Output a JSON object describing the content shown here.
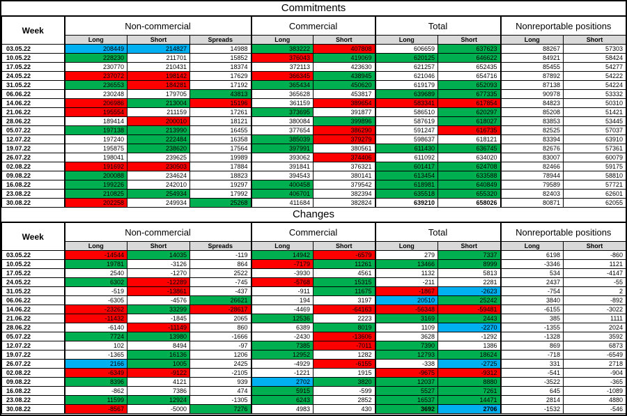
{
  "colors": {
    "g": "#00b050",
    "r": "#ff0000",
    "b": "#00b0f0",
    "header_fill": "#d9d9d9"
  },
  "chart_data": [
    {
      "type": "table",
      "title": "Commitments",
      "week_label": "Week",
      "groups": [
        {
          "label": "Non-commercial",
          "span": 3
        },
        {
          "label": "Commercial",
          "span": 2
        },
        {
          "label": "Total",
          "span": 2
        },
        {
          "label": "Nonreportable positions",
          "span": 2
        }
      ],
      "sub_headers": [
        "Long",
        "Short",
        "Spreads",
        "Long",
        "Short",
        "Long",
        "Short",
        "Long",
        "Short"
      ],
      "rows": [
        {
          "week": "03.05.22",
          "values": [
            208449,
            214827,
            14988,
            383222,
            407808,
            606659,
            637623,
            88267,
            57303
          ],
          "fills": "bb.gr.g.."
        },
        {
          "week": "10.05.22",
          "values": [
            228230,
            211701,
            15852,
            376043,
            419069,
            620125,
            646622,
            84921,
            58424
          ],
          "fills": "g..rggg.."
        },
        {
          "week": "17.05.22",
          "values": [
            230770,
            210431,
            18374,
            372113,
            423630,
            621257,
            652435,
            85455,
            54277
          ],
          "fills": "........."
        },
        {
          "week": "24.05.22",
          "values": [
            237072,
            198142,
            17629,
            366345,
            438945,
            621046,
            654716,
            87892,
            54222
          ],
          "fills": "rr.rg...."
        },
        {
          "week": "31.05.22",
          "values": [
            236553,
            184281,
            17192,
            365434,
            450620,
            619179,
            652093,
            87138,
            54224
          ],
          "fills": "gr.gg.g.."
        },
        {
          "week": "06.06.22",
          "values": [
            230248,
            179705,
            43813,
            365628,
            453817,
            639689,
            677335,
            90978,
            53332
          ],
          "fills": "..g..gg.."
        },
        {
          "week": "14.06.22",
          "values": [
            206986,
            213004,
            15196,
            361159,
            389654,
            583341,
            617854,
            84823,
            50310
          ],
          "fills": "rgr.rrr.."
        },
        {
          "week": "21.06.22",
          "values": [
            195554,
            211159,
            17261,
            373695,
            391877,
            586510,
            620297,
            85208,
            51421
          ],
          "fills": "r..g..g.."
        },
        {
          "week": "28.06.22",
          "values": [
            189414,
            200010,
            18121,
            380084,
            399896,
            587619,
            618027,
            83853,
            53445
          ],
          "fills": ".r..g.g.."
        },
        {
          "week": "05.07.22",
          "values": [
            197138,
            213990,
            16455,
            377654,
            386290,
            591247,
            616735,
            82525,
            57037
          ],
          "fills": "gg..r.r.."
        },
        {
          "week": "12.07.22",
          "values": [
            197240,
            222484,
            16358,
            385039,
            379279,
            598637,
            618121,
            83394,
            63910
          ],
          "fills": ".g.gr...."
        },
        {
          "week": "19.07.22",
          "values": [
            195875,
            238620,
            17564,
            397991,
            380561,
            611430,
            636745,
            82676,
            57361
          ],
          "fills": ".g.g.gg.."
        },
        {
          "week": "26.07.22",
          "values": [
            198041,
            239625,
            19989,
            393062,
            374406,
            611092,
            634020,
            83007,
            60079
          ],
          "fills": "....r...."
        },
        {
          "week": "02.08.22",
          "values": [
            191692,
            230503,
            17884,
            391841,
            376321,
            601417,
            624708,
            82466,
            59175
          ],
          "fills": "rr...gg.."
        },
        {
          "week": "09.08.22",
          "values": [
            200088,
            234624,
            18823,
            394543,
            380141,
            613454,
            633588,
            78944,
            58810
          ],
          "fills": "g....gg.."
        },
        {
          "week": "16.08.22",
          "values": [
            199226,
            242010,
            19297,
            400458,
            379542,
            618981,
            640849,
            79589,
            57721
          ],
          "fills": "g..g.gg.."
        },
        {
          "week": "23.08.22",
          "values": [
            210825,
            254934,
            17992,
            406701,
            382394,
            635518,
            655320,
            82403,
            62601
          ],
          "fills": "gg.g.gg.."
        },
        {
          "week": "30.08.22",
          "values": [
            202258,
            249934,
            25268,
            411684,
            382824,
            639210,
            658026,
            80871,
            62055
          ],
          "fills": "r.g......",
          "bold": [
            5,
            6
          ]
        }
      ]
    },
    {
      "type": "table",
      "title": "Changes",
      "week_label": "Week",
      "groups": [
        {
          "label": "Non-commercial",
          "span": 3
        },
        {
          "label": "Commercial",
          "span": 2
        },
        {
          "label": "Total",
          "span": 2
        },
        {
          "label": "Nonreportable positions",
          "span": 2
        }
      ],
      "sub_headers": [
        "Long",
        "Short",
        "Spreads",
        "Long",
        "Short",
        "Long",
        "Short",
        "Long",
        "Short"
      ],
      "rows": [
        {
          "week": "03.05.22",
          "values": [
            -14544,
            14035,
            -119,
            14942,
            -6579,
            279,
            7337,
            6198,
            -860
          ],
          "fills": "rg.gr.g.."
        },
        {
          "week": "10.05.22",
          "values": [
            19781,
            -3126,
            864,
            -7179,
            11261,
            13466,
            8999,
            -3346,
            1121
          ],
          "fills": "g..rggg.."
        },
        {
          "week": "17.05.22",
          "values": [
            2540,
            -1270,
            2522,
            -3930,
            4561,
            1132,
            5813,
            534,
            -4147
          ],
          "fills": "........."
        },
        {
          "week": "24.05.22",
          "values": [
            6302,
            -12289,
            -745,
            -5768,
            15315,
            -211,
            2281,
            2437,
            -55
          ],
          "fills": "gr.rg...."
        },
        {
          "week": "31.05.22",
          "values": [
            -519,
            -13861,
            -437,
            -911,
            11675,
            -1867,
            -2623,
            -754,
            2
          ],
          "fills": ".r..grb.."
        },
        {
          "week": "06.06.22",
          "values": [
            -6305,
            -4576,
            26621,
            194,
            3197,
            20510,
            25242,
            3840,
            -892
          ],
          "fills": "..g..bg.."
        },
        {
          "week": "14.06.22",
          "values": [
            -23262,
            33299,
            -28617,
            -4469,
            -64163,
            -56348,
            -59481,
            -6155,
            -3022
          ],
          "fills": "rgr.rrr.."
        },
        {
          "week": "21.06.22",
          "values": [
            -11432,
            -1845,
            2065,
            12536,
            2223,
            3169,
            2443,
            385,
            1111
          ],
          "fills": "r..g.gg.."
        },
        {
          "week": "28.06.22",
          "values": [
            -6140,
            -11149,
            860,
            6389,
            8019,
            1109,
            -2270,
            -1355,
            2024
          ],
          "fills": ".r..g.b.."
        },
        {
          "week": "05.07.22",
          "values": [
            7724,
            13980,
            -1666,
            -2430,
            -13606,
            3628,
            -1292,
            -1328,
            3592
          ],
          "fills": "gg..r...."
        },
        {
          "week": "12.07.22",
          "values": [
            102,
            8494,
            -97,
            7385,
            -7011,
            7390,
            1386,
            869,
            6873
          ],
          "fills": "...grg..."
        },
        {
          "week": "19.07.22",
          "values": [
            -1365,
            16136,
            1206,
            12952,
            1282,
            12793,
            18624,
            -718,
            -6549
          ],
          "fills": ".g.g.gg.."
        },
        {
          "week": "26.07.22",
          "values": [
            2166,
            1005,
            2425,
            -4929,
            -6155,
            -338,
            -2725,
            331,
            2718
          ],
          "fills": "bg..r.b.."
        },
        {
          "week": "02.08.22",
          "values": [
            -6349,
            -9122,
            -2105,
            -1221,
            1915,
            -9675,
            -9312,
            -541,
            -904
          ],
          "fills": "rr...rr.."
        },
        {
          "week": "09.08.22",
          "values": [
            8396,
            4121,
            939,
            2702,
            3820,
            12037,
            8880,
            -3522,
            -365
          ],
          "fills": "g..bggg.."
        },
        {
          "week": "16.08.22",
          "values": [
            -862,
            7386,
            474,
            5915,
            -599,
            5527,
            7261,
            645,
            -1089
          ],
          "fills": "...g.gg.."
        },
        {
          "week": "23.08.22",
          "values": [
            11599,
            12924,
            -1305,
            6243,
            2852,
            16537,
            14471,
            2814,
            4880
          ],
          "fills": "gg.g.gg.."
        },
        {
          "week": "30.08.22",
          "values": [
            -8567,
            -5000,
            7276,
            4983,
            430,
            3692,
            2706,
            -1532,
            -546
          ],
          "fills": "r.g..gb..",
          "bold": [
            5,
            6
          ]
        }
      ]
    }
  ]
}
